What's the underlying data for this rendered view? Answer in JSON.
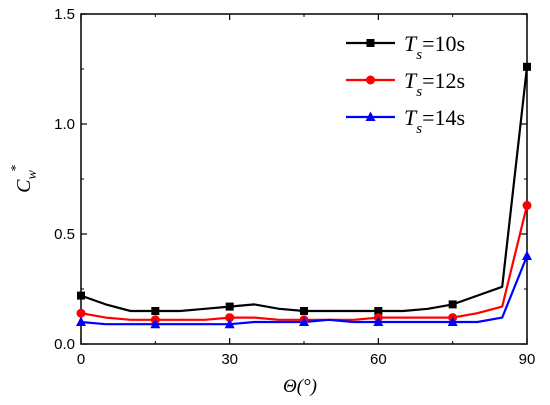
{
  "chart_data": {
    "type": "line",
    "xlabel": "Θ(°)",
    "ylabel": "Cw*",
    "xlim": [
      0,
      90
    ],
    "ylim": [
      0,
      1.5
    ],
    "x_ticks": [
      0,
      30,
      60,
      90
    ],
    "x_tick_labels": [
      "0",
      "30",
      "60",
      "90"
    ],
    "y_ticks": [
      0,
      0.5,
      1.0,
      1.5
    ],
    "y_tick_labels": [
      "0.0",
      "0.5",
      "1.0",
      "1.5"
    ],
    "legend_position": "top-right",
    "grid": false,
    "series": [
      {
        "name": "Ts=10s",
        "name_base": "T",
        "name_sub": "s",
        "name_rest": "=10s",
        "color": "#000000",
        "marker": "square",
        "x": [
          0,
          5,
          10,
          15,
          20,
          25,
          30,
          35,
          40,
          45,
          50,
          55,
          60,
          65,
          70,
          75,
          80,
          85,
          90
        ],
        "y": [
          0.22,
          0.18,
          0.15,
          0.15,
          0.15,
          0.16,
          0.17,
          0.18,
          0.16,
          0.15,
          0.15,
          0.15,
          0.15,
          0.15,
          0.16,
          0.18,
          0.22,
          0.26,
          1.26
        ],
        "marker_x": [
          0,
          15,
          30,
          45,
          60,
          75,
          90
        ]
      },
      {
        "name": "Ts=12s",
        "name_base": "T",
        "name_sub": "s",
        "name_rest": "=12s",
        "color": "#ff0000",
        "marker": "circle",
        "x": [
          0,
          5,
          10,
          15,
          20,
          25,
          30,
          35,
          40,
          45,
          50,
          55,
          60,
          65,
          70,
          75,
          80,
          85,
          90
        ],
        "y": [
          0.14,
          0.12,
          0.11,
          0.11,
          0.11,
          0.11,
          0.12,
          0.12,
          0.11,
          0.11,
          0.11,
          0.11,
          0.12,
          0.12,
          0.12,
          0.12,
          0.14,
          0.17,
          0.63
        ],
        "marker_x": [
          0,
          15,
          30,
          45,
          60,
          75,
          90
        ]
      },
      {
        "name": "Ts=14s",
        "name_base": "T",
        "name_sub": "s",
        "name_rest": "=14s",
        "color": "#0000ff",
        "marker": "triangle",
        "x": [
          0,
          5,
          10,
          15,
          20,
          25,
          30,
          35,
          40,
          45,
          50,
          55,
          60,
          65,
          70,
          75,
          80,
          85,
          90
        ],
        "y": [
          0.1,
          0.09,
          0.09,
          0.09,
          0.09,
          0.09,
          0.09,
          0.1,
          0.1,
          0.1,
          0.11,
          0.1,
          0.1,
          0.1,
          0.1,
          0.1,
          0.1,
          0.12,
          0.4
        ],
        "marker_x": [
          0,
          15,
          30,
          45,
          60,
          75,
          90
        ]
      }
    ]
  }
}
